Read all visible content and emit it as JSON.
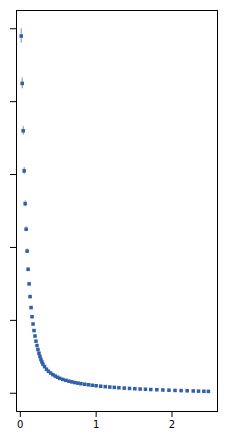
{
  "chart_data": {
    "type": "scatter",
    "marker": "square",
    "color": "#3060aa",
    "xlim": [
      -0.05,
      2.6
    ],
    "ylim": [
      -0.5,
      10.5
    ],
    "xticks": [
      0,
      1,
      2
    ],
    "yticks": [
      0,
      2,
      4,
      6,
      8,
      10
    ],
    "tick_labels": "x",
    "grid": false,
    "x": [
      0.012,
      0.025,
      0.038,
      0.051,
      0.064,
      0.077,
      0.09,
      0.103,
      0.116,
      0.129,
      0.142,
      0.155,
      0.168,
      0.181,
      0.194,
      0.207,
      0.22,
      0.233,
      0.246,
      0.259,
      0.272,
      0.285,
      0.298,
      0.32,
      0.345,
      0.37,
      0.4,
      0.43,
      0.46,
      0.49,
      0.52,
      0.56,
      0.6,
      0.64,
      0.68,
      0.72,
      0.76,
      0.8,
      0.85,
      0.9,
      0.95,
      1.0,
      1.06,
      1.12,
      1.18,
      1.24,
      1.3,
      1.37,
      1.44,
      1.51,
      1.58,
      1.65,
      1.72,
      1.8,
      1.88,
      1.96,
      2.04,
      2.12,
      2.2,
      2.28,
      2.35,
      2.42,
      2.48
    ],
    "values": [
      9.8,
      8.5,
      7.2,
      6.1,
      5.2,
      4.5,
      3.9,
      3.4,
      3.0,
      2.65,
      2.35,
      2.1,
      1.9,
      1.72,
      1.57,
      1.43,
      1.31,
      1.2,
      1.1,
      1.01,
      0.93,
      0.86,
      0.8,
      0.73,
      0.66,
      0.605,
      0.555,
      0.51,
      0.472,
      0.44,
      0.41,
      0.38,
      0.355,
      0.332,
      0.312,
      0.294,
      0.278,
      0.263,
      0.247,
      0.233,
      0.219,
      0.207,
      0.194,
      0.182,
      0.171,
      0.161,
      0.152,
      0.142,
      0.133,
      0.125,
      0.117,
      0.11,
      0.103,
      0.096,
      0.09,
      0.084,
      0.078,
      0.073,
      0.068,
      0.063,
      0.059,
      0.055,
      0.052
    ],
    "yerr": [
      0.2,
      0.15,
      0.12,
      0.095,
      0.08,
      0.068,
      0.058,
      0.05,
      0.043,
      0.038,
      0.033,
      0.029,
      0.026,
      0.023,
      0.021,
      0.019,
      0.017,
      0.016,
      0.014,
      0.013,
      0.012,
      0.011,
      0.01,
      0.009,
      0.0085,
      0.0078,
      0.0072,
      0.0067,
      0.0063,
      0.0059,
      0.0055,
      0.0052,
      0.0049,
      0.0046,
      0.0044,
      0.0041,
      0.0039,
      0.0037,
      0.0035,
      0.0033,
      0.0031,
      0.0029,
      0.0028,
      0.0026,
      0.0025,
      0.0024,
      0.0023,
      0.0022,
      0.0021,
      0.002,
      0.0019,
      0.00185,
      0.0018,
      0.0018,
      0.0019,
      0.002,
      0.0022,
      0.0024,
      0.0027,
      0.0031,
      0.0036,
      0.0042,
      0.005
    ]
  }
}
